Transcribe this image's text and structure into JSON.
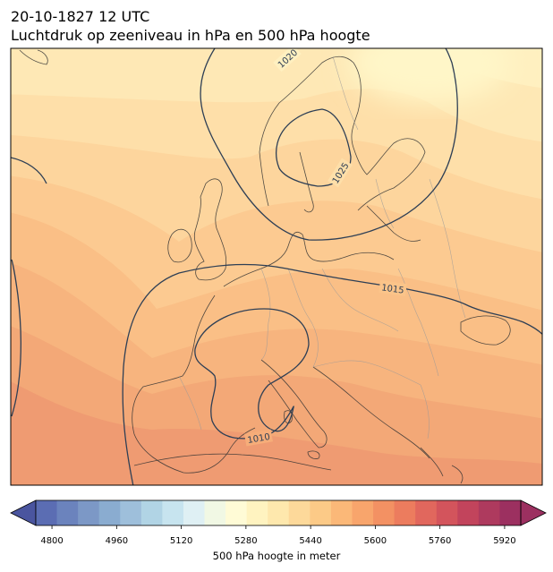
{
  "header": {
    "datetime": "20-10-1827 12 UTC",
    "subtitle": "Luchtdruk op zeeniveau in hPa en 500 hPa hoogte"
  },
  "map": {
    "region": "Europe",
    "field_fill": "500 hPa geopotential height",
    "field_contours": "sea level pressure",
    "isobar_color": "#2e3f55",
    "isobar_labels": [
      "1020",
      "1025",
      "1015",
      "1010"
    ],
    "coastline_color": "#333333",
    "border_color": "#9a9a9a"
  },
  "colorbar": {
    "label": "500 hPa hoogte in meter",
    "ticks": [
      "4800",
      "4960",
      "5120",
      "5280",
      "5440",
      "5600",
      "5760",
      "5920"
    ],
    "min": 4760,
    "max": 5960,
    "step": 40,
    "extend": "both",
    "colors": [
      "#5b6db3",
      "#6b83bd",
      "#7c98c6",
      "#8aacd0",
      "#9ebfdb",
      "#b1d4e5",
      "#c7e4ef",
      "#dff0f4",
      "#f1f8e4",
      "#fffbd6",
      "#fff3c0",
      "#fee8ad",
      "#fdd99a",
      "#fcca87",
      "#fbb878",
      "#f8a56c",
      "#f39163",
      "#ec7c5e",
      "#e1675d",
      "#d3545c",
      "#c2445c",
      "#ae3a5e",
      "#9c3060"
    ]
  }
}
